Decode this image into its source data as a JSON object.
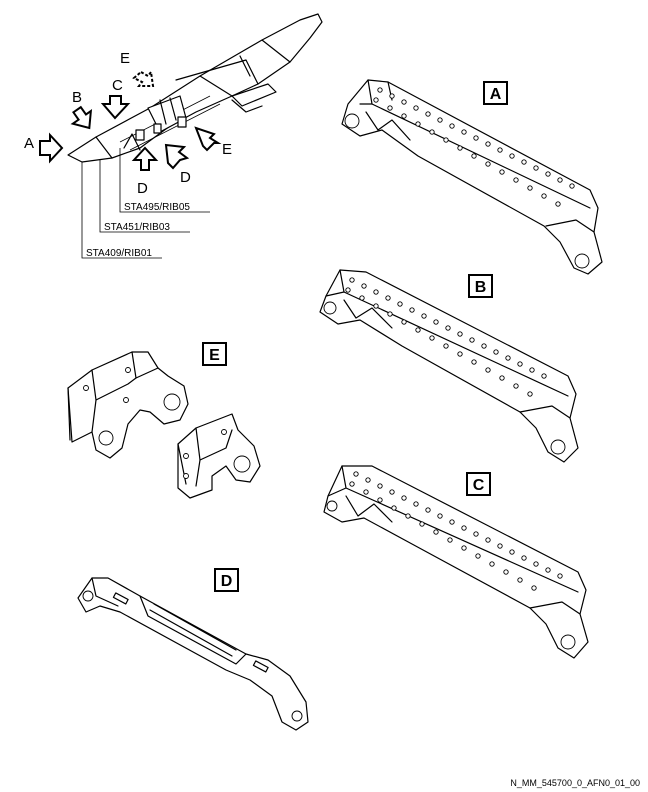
{
  "overview": {
    "arrow_labels": {
      "A": "A",
      "B": "B",
      "C": "C",
      "D_left": "D",
      "D_right": "D",
      "E_top": "E",
      "E_right": "E"
    },
    "stations": {
      "rib05": "STA495/RIB05",
      "rib03": "STA451/RIB03",
      "rib01": "STA409/RIB01"
    }
  },
  "details": {
    "A": "A",
    "B": "B",
    "C": "C",
    "D": "D",
    "E": "E"
  },
  "figure_id": "N_MM_545700_0_AFN0_01_00"
}
